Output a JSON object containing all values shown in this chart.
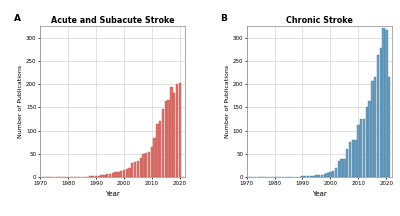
{
  "years": [
    1971,
    1972,
    1973,
    1974,
    1975,
    1976,
    1977,
    1978,
    1979,
    1980,
    1981,
    1982,
    1983,
    1984,
    1985,
    1986,
    1987,
    1988,
    1989,
    1990,
    1991,
    1992,
    1993,
    1994,
    1995,
    1996,
    1997,
    1998,
    1999,
    2000,
    2001,
    2002,
    2003,
    2004,
    2005,
    2006,
    2007,
    2008,
    2009,
    2010,
    2011,
    2012,
    2013,
    2014,
    2015,
    2016,
    2017,
    2018,
    2019,
    2020,
    2021
  ],
  "acute_values": [
    0,
    0,
    0,
    0,
    0,
    0,
    0,
    0,
    0,
    0,
    1,
    0,
    0,
    1,
    1,
    1,
    1,
    2,
    2,
    3,
    3,
    4,
    5,
    6,
    7,
    8,
    10,
    11,
    13,
    16,
    18,
    20,
    30,
    32,
    35,
    42,
    50,
    52,
    55,
    65,
    85,
    115,
    120,
    147,
    163,
    165,
    193,
    180,
    200,
    203,
    0
  ],
  "chronic_values": [
    0,
    0,
    0,
    0,
    0,
    0,
    0,
    0,
    0,
    0,
    0,
    0,
    1,
    1,
    1,
    1,
    1,
    1,
    1,
    2,
    2,
    3,
    3,
    3,
    4,
    4,
    5,
    6,
    8,
    12,
    14,
    20,
    35,
    40,
    40,
    60,
    75,
    80,
    80,
    112,
    124,
    124,
    150,
    163,
    207,
    215,
    263,
    278,
    320,
    317,
    215
  ],
  "title_a": "Acute and Subacute Stroke",
  "title_b": "Chronic Stroke",
  "xlabel": "Year",
  "ylabel": "Number of Publications",
  "label_a": "A",
  "label_b": "B",
  "bar_color_a": "#d9736b",
  "bar_color_b": "#6a9fc0",
  "bar_edge_a": "#c05a52",
  "bar_edge_b": "#4a7fa0",
  "xlim": [
    1970,
    2022
  ],
  "ylim_a": [
    0,
    325
  ],
  "ylim_b": [
    0,
    325
  ],
  "yticks": [
    0,
    50,
    100,
    150,
    200,
    250,
    300
  ],
  "xticks": [
    1970,
    1980,
    1990,
    2000,
    2010,
    2020
  ],
  "bg_color": "#ffffff",
  "grid_color": "#cccccc"
}
